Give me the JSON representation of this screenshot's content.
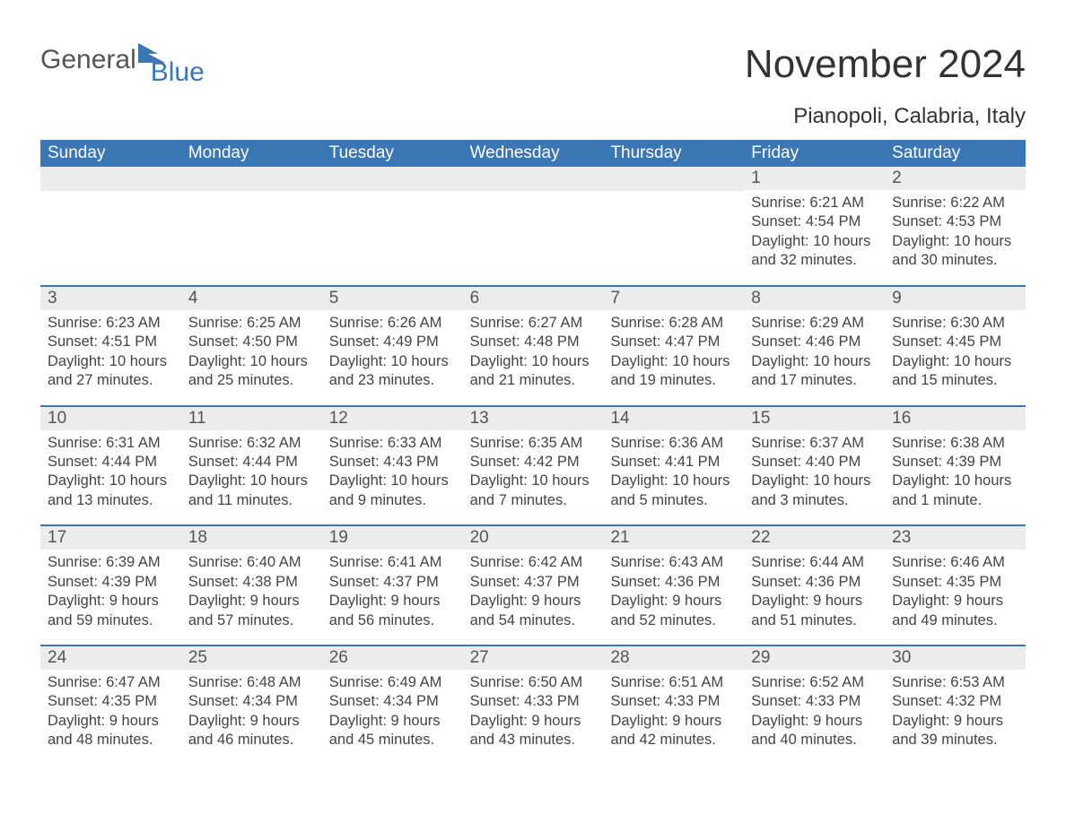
{
  "logo": {
    "part1": "General",
    "part2": "Blue"
  },
  "title": "November 2024",
  "location": "Pianopoli, Calabria, Italy",
  "colors": {
    "header_bg": "#3b76b5",
    "daynum_bg": "#ececec",
    "text": "#333333",
    "body_bg": "#ffffff"
  },
  "weekdays": [
    "Sunday",
    "Monday",
    "Tuesday",
    "Wednesday",
    "Thursday",
    "Friday",
    "Saturday"
  ],
  "weeks": [
    [
      null,
      null,
      null,
      null,
      null,
      {
        "n": "1",
        "sunrise": "6:21 AM",
        "sunset": "4:54 PM",
        "daylight": "10 hours and 32 minutes."
      },
      {
        "n": "2",
        "sunrise": "6:22 AM",
        "sunset": "4:53 PM",
        "daylight": "10 hours and 30 minutes."
      }
    ],
    [
      {
        "n": "3",
        "sunrise": "6:23 AM",
        "sunset": "4:51 PM",
        "daylight": "10 hours and 27 minutes."
      },
      {
        "n": "4",
        "sunrise": "6:25 AM",
        "sunset": "4:50 PM",
        "daylight": "10 hours and 25 minutes."
      },
      {
        "n": "5",
        "sunrise": "6:26 AM",
        "sunset": "4:49 PM",
        "daylight": "10 hours and 23 minutes."
      },
      {
        "n": "6",
        "sunrise": "6:27 AM",
        "sunset": "4:48 PM",
        "daylight": "10 hours and 21 minutes."
      },
      {
        "n": "7",
        "sunrise": "6:28 AM",
        "sunset": "4:47 PM",
        "daylight": "10 hours and 19 minutes."
      },
      {
        "n": "8",
        "sunrise": "6:29 AM",
        "sunset": "4:46 PM",
        "daylight": "10 hours and 17 minutes."
      },
      {
        "n": "9",
        "sunrise": "6:30 AM",
        "sunset": "4:45 PM",
        "daylight": "10 hours and 15 minutes."
      }
    ],
    [
      {
        "n": "10",
        "sunrise": "6:31 AM",
        "sunset": "4:44 PM",
        "daylight": "10 hours and 13 minutes."
      },
      {
        "n": "11",
        "sunrise": "6:32 AM",
        "sunset": "4:44 PM",
        "daylight": "10 hours and 11 minutes."
      },
      {
        "n": "12",
        "sunrise": "6:33 AM",
        "sunset": "4:43 PM",
        "daylight": "10 hours and 9 minutes."
      },
      {
        "n": "13",
        "sunrise": "6:35 AM",
        "sunset": "4:42 PM",
        "daylight": "10 hours and 7 minutes."
      },
      {
        "n": "14",
        "sunrise": "6:36 AM",
        "sunset": "4:41 PM",
        "daylight": "10 hours and 5 minutes."
      },
      {
        "n": "15",
        "sunrise": "6:37 AM",
        "sunset": "4:40 PM",
        "daylight": "10 hours and 3 minutes."
      },
      {
        "n": "16",
        "sunrise": "6:38 AM",
        "sunset": "4:39 PM",
        "daylight": "10 hours and 1 minute."
      }
    ],
    [
      {
        "n": "17",
        "sunrise": "6:39 AM",
        "sunset": "4:39 PM",
        "daylight": "9 hours and 59 minutes."
      },
      {
        "n": "18",
        "sunrise": "6:40 AM",
        "sunset": "4:38 PM",
        "daylight": "9 hours and 57 minutes."
      },
      {
        "n": "19",
        "sunrise": "6:41 AM",
        "sunset": "4:37 PM",
        "daylight": "9 hours and 56 minutes."
      },
      {
        "n": "20",
        "sunrise": "6:42 AM",
        "sunset": "4:37 PM",
        "daylight": "9 hours and 54 minutes."
      },
      {
        "n": "21",
        "sunrise": "6:43 AM",
        "sunset": "4:36 PM",
        "daylight": "9 hours and 52 minutes."
      },
      {
        "n": "22",
        "sunrise": "6:44 AM",
        "sunset": "4:36 PM",
        "daylight": "9 hours and 51 minutes."
      },
      {
        "n": "23",
        "sunrise": "6:46 AM",
        "sunset": "4:35 PM",
        "daylight": "9 hours and 49 minutes."
      }
    ],
    [
      {
        "n": "24",
        "sunrise": "6:47 AM",
        "sunset": "4:35 PM",
        "daylight": "9 hours and 48 minutes."
      },
      {
        "n": "25",
        "sunrise": "6:48 AM",
        "sunset": "4:34 PM",
        "daylight": "9 hours and 46 minutes."
      },
      {
        "n": "26",
        "sunrise": "6:49 AM",
        "sunset": "4:34 PM",
        "daylight": "9 hours and 45 minutes."
      },
      {
        "n": "27",
        "sunrise": "6:50 AM",
        "sunset": "4:33 PM",
        "daylight": "9 hours and 43 minutes."
      },
      {
        "n": "28",
        "sunrise": "6:51 AM",
        "sunset": "4:33 PM",
        "daylight": "9 hours and 42 minutes."
      },
      {
        "n": "29",
        "sunrise": "6:52 AM",
        "sunset": "4:33 PM",
        "daylight": "9 hours and 40 minutes."
      },
      {
        "n": "30",
        "sunrise": "6:53 AM",
        "sunset": "4:32 PM",
        "daylight": "9 hours and 39 minutes."
      }
    ]
  ],
  "labels": {
    "sunrise": "Sunrise: ",
    "sunset": "Sunset: ",
    "daylight": "Daylight: "
  }
}
